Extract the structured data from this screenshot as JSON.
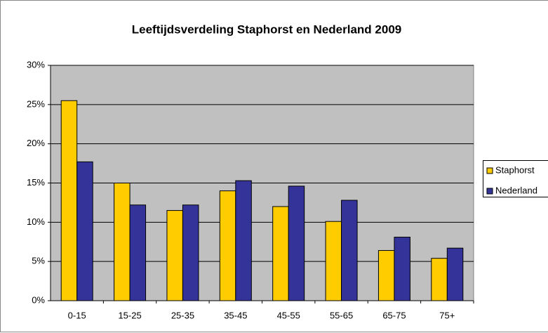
{
  "chart_data": {
    "type": "bar",
    "title": "Leeftijdsverdeling Staphorst en Nederland 2009",
    "categories": [
      "0-15",
      "15-25",
      "25-35",
      "35-45",
      "45-55",
      "55-65",
      "65-75",
      "75+"
    ],
    "series": [
      {
        "name": "Staphorst",
        "color": "#ffcc00",
        "values": [
          25.5,
          15.0,
          11.5,
          14.0,
          12.0,
          10.1,
          6.4,
          5.4
        ]
      },
      {
        "name": "Nederland",
        "color": "#333399",
        "values": [
          17.7,
          12.2,
          12.2,
          15.3,
          14.6,
          12.8,
          8.1,
          6.7
        ]
      }
    ],
    "ylim": [
      0,
      30
    ],
    "yticks": [
      {
        "value": 0,
        "label": "0%"
      },
      {
        "value": 5,
        "label": "5%"
      },
      {
        "value": 10,
        "label": "10%"
      },
      {
        "value": 15,
        "label": "15%"
      },
      {
        "value": 20,
        "label": "20%"
      },
      {
        "value": 25,
        "label": "25%"
      },
      {
        "value": 30,
        "label": "30%"
      }
    ],
    "grid": true,
    "legend": "right"
  }
}
